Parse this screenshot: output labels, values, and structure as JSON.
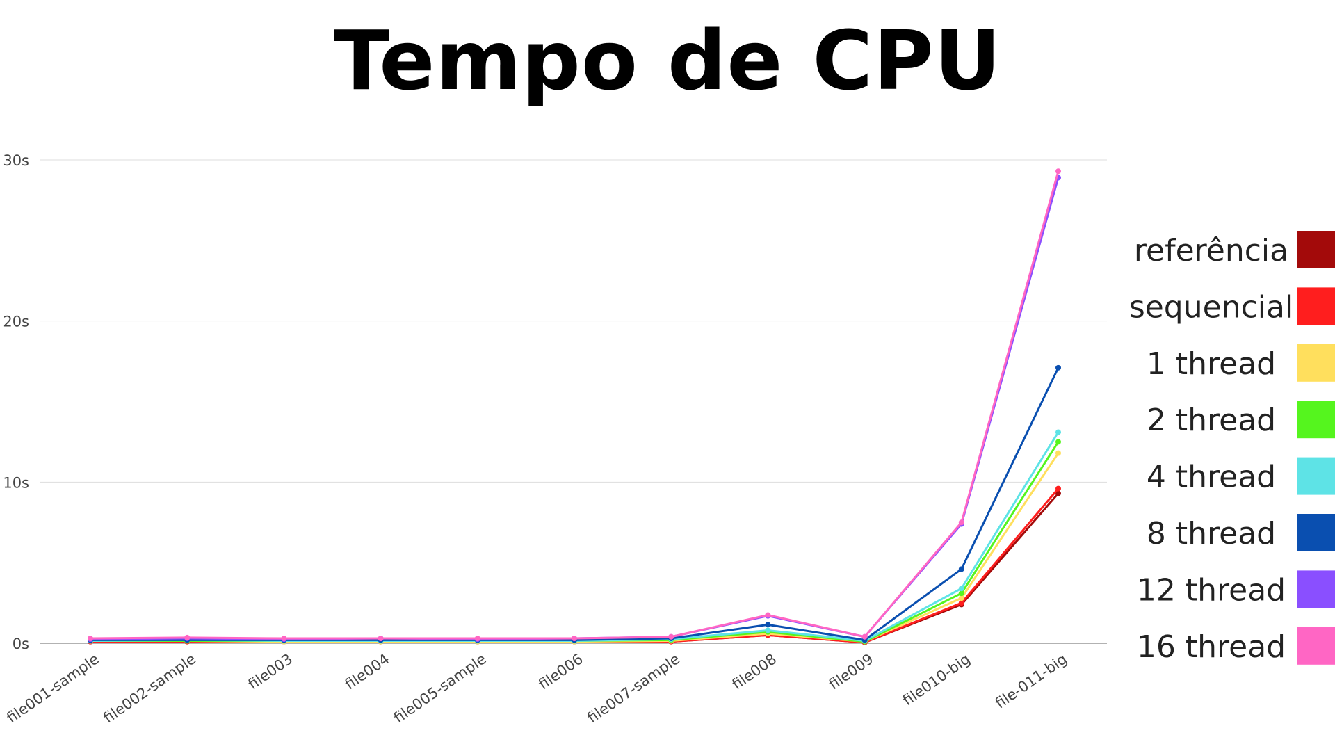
{
  "chart_data": {
    "type": "line",
    "title": "Tempo de CPU",
    "xlabel": "",
    "ylabel": "",
    "categories": [
      "file001-sample",
      "file002-sample",
      "file003",
      "file004",
      "file005-sample",
      "file006",
      "file007-sample",
      "file008",
      "file009",
      "file010-big",
      "file-011-big"
    ],
    "y_ticks": [
      "0s",
      "10s",
      "20s",
      "30s"
    ],
    "ylim": [
      0,
      30
    ],
    "grid": true,
    "legend_position": "right",
    "series": [
      {
        "name": "referência",
        "color": "#a30a0a",
        "values": [
          0.1,
          0.1,
          0.1,
          0.1,
          0.1,
          0.1,
          0.1,
          0.5,
          0.05,
          2.4,
          9.3
        ]
      },
      {
        "name": "sequencial",
        "color": "#ff1e1e",
        "values": [
          0.1,
          0.1,
          0.1,
          0.1,
          0.1,
          0.1,
          0.1,
          0.5,
          0.05,
          2.5,
          9.6
        ]
      },
      {
        "name": "1 thread",
        "color": "#ffdf5d",
        "values": [
          0.15,
          0.15,
          0.1,
          0.1,
          0.1,
          0.1,
          0.15,
          0.6,
          0.1,
          2.8,
          11.8
        ]
      },
      {
        "name": "2 thread",
        "color": "#55f51e",
        "values": [
          0.15,
          0.15,
          0.15,
          0.15,
          0.15,
          0.15,
          0.2,
          0.7,
          0.1,
          3.1,
          12.5
        ]
      },
      {
        "name": "4 thread",
        "color": "#5ee3e6",
        "values": [
          0.15,
          0.2,
          0.15,
          0.15,
          0.15,
          0.15,
          0.25,
          0.8,
          0.15,
          3.4,
          13.1
        ]
      },
      {
        "name": "8 thread",
        "color": "#0a4fb0",
        "values": [
          0.2,
          0.2,
          0.2,
          0.2,
          0.2,
          0.2,
          0.3,
          1.15,
          0.2,
          4.6,
          17.1
        ]
      },
      {
        "name": "12 thread",
        "color": "#8a4fff",
        "values": [
          0.25,
          0.3,
          0.25,
          0.3,
          0.25,
          0.3,
          0.4,
          1.7,
          0.4,
          7.4,
          28.9
        ]
      },
      {
        "name": "16 thread",
        "color": "#ff66c4",
        "values": [
          0.3,
          0.35,
          0.3,
          0.3,
          0.3,
          0.3,
          0.4,
          1.75,
          0.4,
          7.5,
          29.3
        ]
      }
    ]
  }
}
